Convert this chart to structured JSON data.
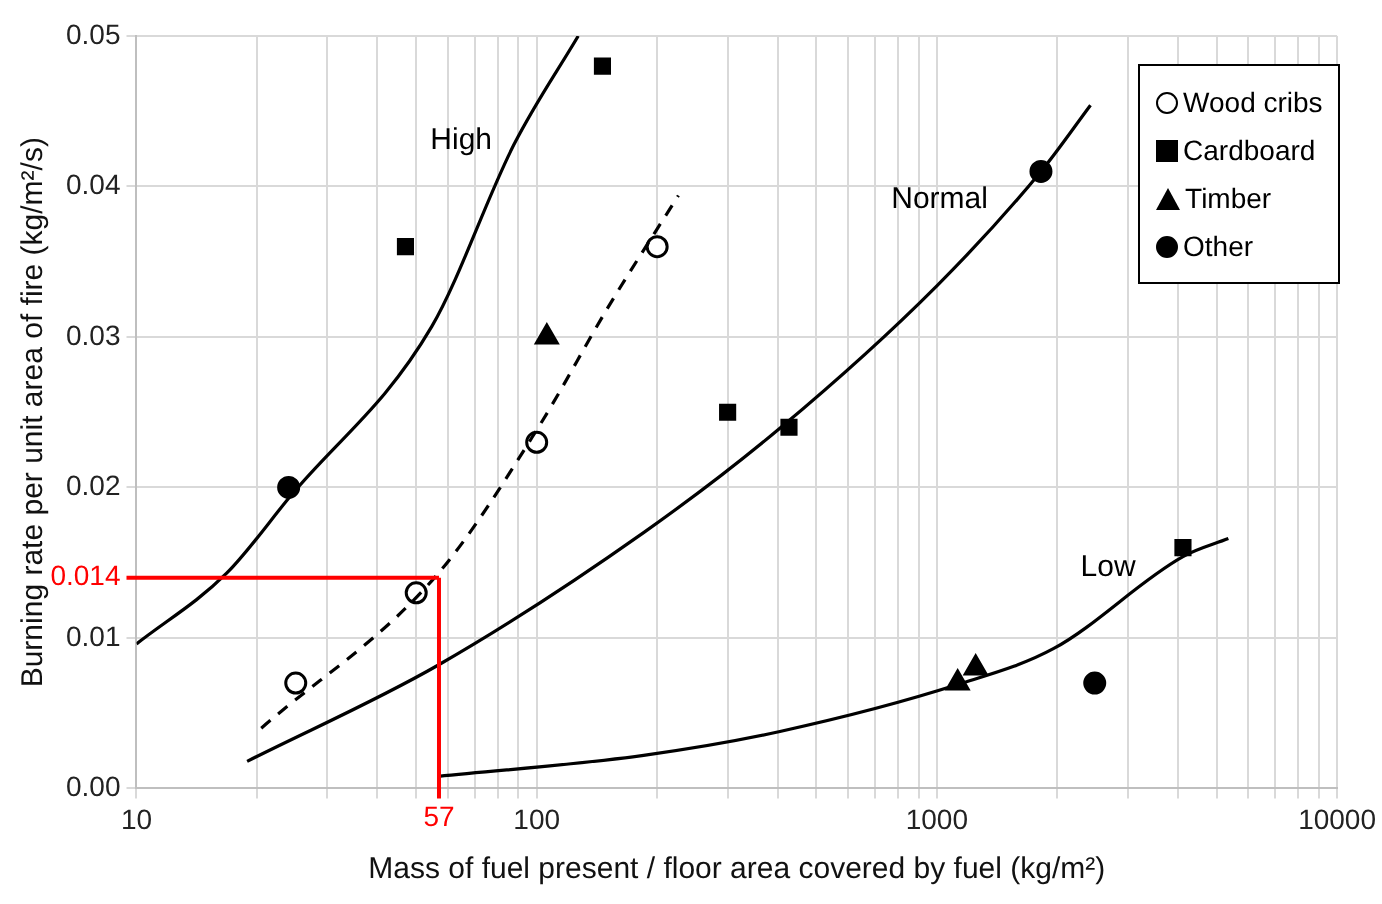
{
  "chart_data": {
    "type": "scatter",
    "xlabel": "Mass of fuel present / floor area covered by fuel (kg/m²)",
    "ylabel": "Burning rate per unit area of fire (kg/m²/s)",
    "log": "x",
    "grid": true,
    "legend": "top right",
    "xlim": [
      10,
      10000
    ],
    "ylim": [
      0,
      0.05
    ],
    "xticks": [
      10,
      {
        "value": 20,
        "label": null
      },
      {
        "value": 30,
        "label": null
      },
      {
        "value": 40,
        "label": null
      },
      {
        "value": 50,
        "label": null
      },
      {
        "value": 60,
        "label": null
      },
      {
        "value": 70,
        "label": null
      },
      {
        "value": 80,
        "label": null
      },
      {
        "value": 90,
        "label": null
      },
      100,
      {
        "value": 200,
        "label": null
      },
      {
        "value": 300,
        "label": null
      },
      {
        "value": 400,
        "label": null
      },
      {
        "value": 500,
        "label": null
      },
      {
        "value": 600,
        "label": null
      },
      {
        "value": 700,
        "label": null
      },
      {
        "value": 800,
        "label": null
      },
      {
        "value": 900,
        "label": null
      },
      1000,
      {
        "value": 2000,
        "label": null
      },
      {
        "value": 3000,
        "label": null
      },
      {
        "value": 4000,
        "label": null
      },
      {
        "value": 5000,
        "label": null
      },
      {
        "value": 6000,
        "label": null
      },
      {
        "value": 7000,
        "label": null
      },
      {
        "value": 8000,
        "label": null
      },
      {
        "value": 9000,
        "label": null
      },
      10000
    ],
    "yticks": [
      {
        "value": 0,
        "label": "0.00"
      },
      {
        "value": 0.01,
        "label": "0.01"
      },
      {
        "value": 0.02,
        "label": "0.02"
      },
      {
        "value": 0.03,
        "label": "0.03"
      },
      {
        "value": 0.04,
        "label": "0.04"
      },
      {
        "value": 0.05,
        "label": "0.05"
      }
    ],
    "series": [
      {
        "name": "High",
        "type": "line",
        "color": "#000000",
        "marker": "none",
        "line_style": "solid",
        "x": [
          10,
          16.8,
          24.2,
          54.7,
          87.8,
          127
        ],
        "values": [
          0.0096,
          0.0143,
          0.0194,
          0.0307,
          0.0428,
          0.05
        ]
      },
      {
        "type": "line",
        "color": "#000000",
        "marker": "none",
        "line_style": "dashed",
        "x": [
          20.5,
          56.8,
          101,
          151,
          226
        ],
        "values": [
          0.004,
          0.0143,
          0.024,
          0.032,
          0.0394
        ]
      },
      {
        "name": "Normal",
        "type": "line",
        "color": "#000000",
        "marker": "none",
        "line_style": "solid",
        "x": [
          18.9,
          56.8,
          185,
          408,
          1000,
          1820,
          2420
        ],
        "values": [
          0.0018,
          0.0082,
          0.017,
          0.024,
          0.0334,
          0.041,
          0.0454
        ]
      },
      {
        "name": "Low",
        "type": "line",
        "color": "#000000",
        "marker": "none",
        "line_style": "solid",
        "x": [
          56.8,
          185,
          408,
          1127,
          1960,
          4120,
          5350
        ],
        "values": [
          0.0008,
          0.0022,
          0.0038,
          0.0069,
          0.0093,
          0.0154,
          0.0166
        ]
      },
      {
        "name": "Wood cribs",
        "type": "scatter",
        "color": "#ffffff",
        "marker": "circle",
        "x": [
          25,
          50,
          100,
          200
        ],
        "values": [
          0.007,
          0.013,
          0.023,
          0.036
        ]
      },
      {
        "name": "Cardboard",
        "type": "scatter",
        "color": "#000000",
        "marker": "square",
        "x": [
          47,
          146,
          300,
          427,
          4120
        ],
        "values": [
          0.036,
          0.048,
          0.025,
          0.024,
          0.016
        ]
      },
      {
        "name": "Timber",
        "type": "scatter",
        "color": "#000000",
        "marker": "triangle",
        "x": [
          106,
          1127,
          1250
        ],
        "values": [
          0.03,
          0.007,
          0.008
        ]
      },
      {
        "name": "Other",
        "type": "scatter",
        "color": "#000000",
        "marker": "circle",
        "x": [
          24,
          1820,
          2480
        ],
        "values": [
          0.02,
          0.041,
          0.007
        ]
      }
    ],
    "ref_lines": [
      {
        "axis": "x",
        "value": 57,
        "label": "57",
        "color": "#ff0000"
      },
      {
        "axis": "y",
        "value": 0.014,
        "label": "0.014",
        "color": "#ff0000"
      }
    ]
  }
}
